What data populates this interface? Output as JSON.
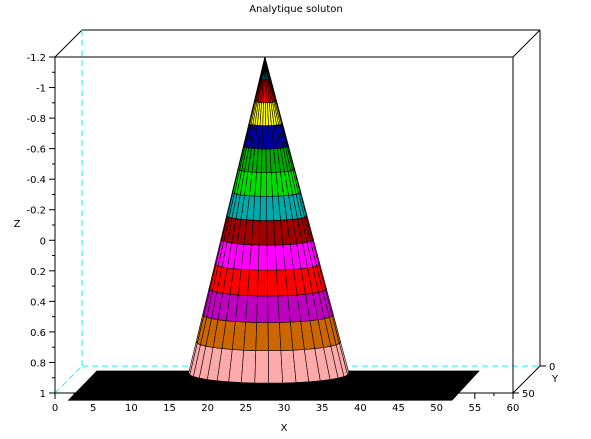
{
  "chart_data": {
    "type": "surface",
    "title": "Analytique soluton",
    "xlabel": "X",
    "ylabel": "Y",
    "zlabel": "Z",
    "x_ticks": [
      "0",
      "5",
      "10",
      "15",
      "20",
      "25",
      "30",
      "35",
      "40",
      "45",
      "50",
      "55",
      "60"
    ],
    "x_range": [
      0,
      60
    ],
    "y_ticks": [
      "0",
      "50"
    ],
    "z_ticks": [
      "-1.2",
      "-1",
      "-0.8",
      "-0.6",
      "-0.4",
      "-0.2",
      "0",
      "0.2",
      "0.4",
      "0.6",
      "0.8",
      "1"
    ],
    "z_range": [
      1,
      -1.2
    ],
    "z_axis_reversed": true,
    "surface": {
      "shape": "cone",
      "apex": {
        "x": 27.5,
        "z": -1.2
      },
      "base": {
        "x_min": 17.5,
        "x_max": 38.5,
        "z": 0.87
      },
      "floor_z": 0.87,
      "floor_color": "#000000",
      "band_colors": [
        "#ffaaaa",
        "#cc6600",
        "#c000c0",
        "#ff0000",
        "#ff00ff",
        "#a00000",
        "#00aaaa",
        "#00dd00",
        "#00aa00",
        "#0000aa",
        "#ffff00",
        "#ff0000",
        "#00ffff"
      ]
    },
    "grid": false,
    "box_color": "#000000",
    "guide_color": "#00ffff"
  }
}
